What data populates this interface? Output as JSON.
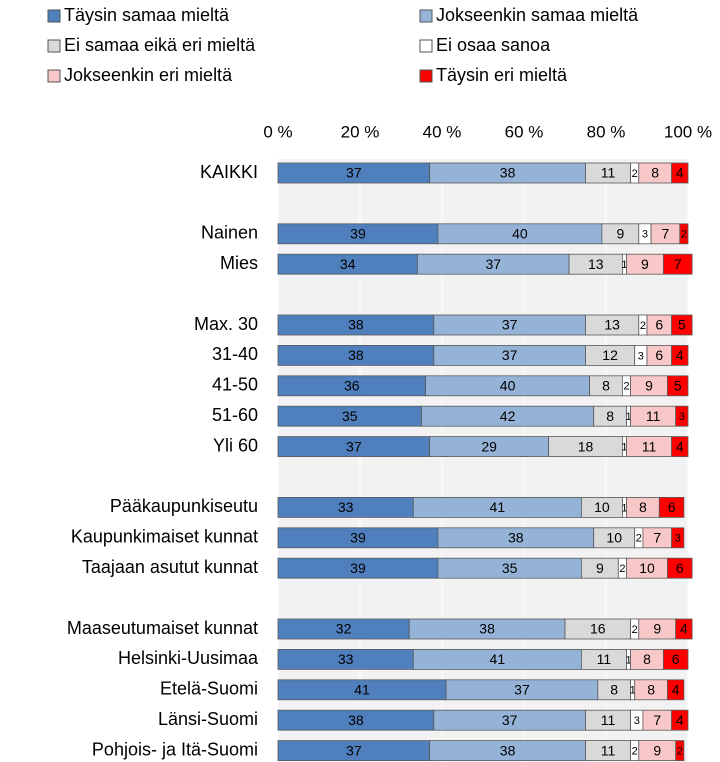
{
  "chart_data": {
    "type": "stacked-bar-horizontal",
    "categories": [
      "KAIKKI",
      null,
      "Nainen",
      "Mies",
      null,
      "Max. 30",
      "31-40",
      "41-50",
      "51-60",
      "Yli 60",
      null,
      "Pääkaupunkiseutu",
      "Kaupunkimaiset kunnat",
      "Taajaan asutut kunnat",
      null,
      "Maaseutumaiset kunnat",
      "Helsinki-Uusimaa",
      "Etelä-Suomi",
      "Länsi-Suomi",
      "Pohjois- ja Itä-Suomi"
    ],
    "series": [
      {
        "name": "Täysin samaa mieltä",
        "color": "#4f7fbd",
        "values": [
          37,
          null,
          39,
          34,
          null,
          38,
          38,
          36,
          35,
          37,
          null,
          33,
          39,
          39,
          null,
          32,
          33,
          41,
          38,
          37
        ]
      },
      {
        "name": "Jokseenkin samaa mieltä",
        "color": "#95b3d7",
        "values": [
          38,
          null,
          40,
          37,
          null,
          37,
          37,
          40,
          42,
          29,
          null,
          41,
          38,
          35,
          null,
          38,
          41,
          37,
          37,
          38
        ]
      },
      {
        "name": "Ei samaa eikä eri mieltä",
        "color": "#d9d9d9",
        "values": [
          11,
          null,
          9,
          13,
          null,
          13,
          12,
          8,
          8,
          18,
          null,
          10,
          10,
          9,
          null,
          16,
          11,
          8,
          11,
          11
        ]
      },
      {
        "name": "Ei osaa sanoa",
        "color": "#ffffff",
        "values": [
          2,
          null,
          3,
          1,
          null,
          2,
          3,
          2,
          1,
          1,
          null,
          1,
          2,
          2,
          null,
          2,
          1,
          1,
          3,
          2
        ]
      },
      {
        "name": "Jokseenkin eri mieltä",
        "color": "#f8c8c8",
        "values": [
          8,
          null,
          7,
          9,
          null,
          6,
          6,
          9,
          11,
          11,
          null,
          8,
          7,
          10,
          null,
          9,
          8,
          8,
          7,
          9
        ]
      },
      {
        "name": "Täysin eri mieltä",
        "color": "#ff0000",
        "values": [
          4,
          null,
          2,
          7,
          null,
          5,
          4,
          5,
          3,
          4,
          null,
          6,
          3,
          6,
          null,
          4,
          6,
          4,
          4,
          2
        ]
      }
    ],
    "xlim": [
      0,
      100
    ],
    "xticks": [
      {
        "value": 0,
        "label": "0 %"
      },
      {
        "value": 20,
        "label": "20 %"
      },
      {
        "value": 40,
        "label": "40 %"
      },
      {
        "value": 60,
        "label": "60 %"
      },
      {
        "value": 80,
        "label": "80 %"
      },
      {
        "value": 100,
        "label": "100 %"
      }
    ],
    "grid": true,
    "legend": "top"
  }
}
